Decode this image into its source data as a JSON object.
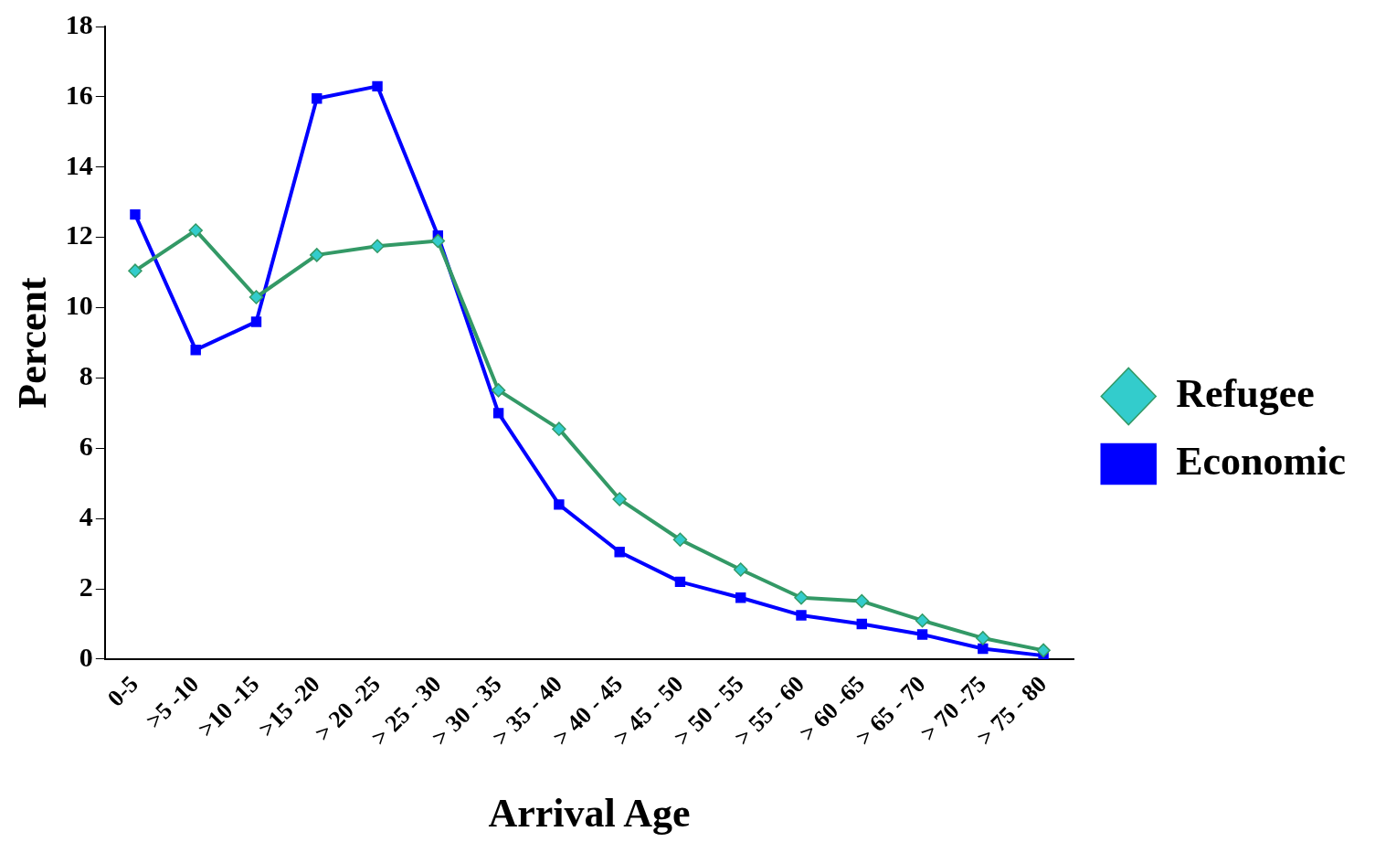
{
  "chart_data": {
    "type": "line",
    "xlabel": "Arrival Age",
    "ylabel": "Percent",
    "categories": [
      "0-5",
      ">5 -10",
      ">10 -15",
      ">15 -20",
      "> 20 -25",
      "> 25 - 30",
      "> 30 - 35",
      "> 35 - 40",
      "> 40 - 45",
      "> 45 - 50",
      "> 50 - 55",
      "> 55 - 60",
      "> 60 -65",
      "> 65 - 70",
      "> 70 -75",
      "> 75 - 80"
    ],
    "series": [
      {
        "name": "Refugee",
        "color": "#339966",
        "marker": "diamond",
        "values": [
          11.05,
          12.2,
          10.3,
          11.5,
          11.75,
          11.9,
          7.65,
          6.55,
          4.55,
          3.4,
          2.55,
          1.75,
          1.65,
          1.1,
          0.6,
          0.25
        ]
      },
      {
        "name": "Economic",
        "color": "#0000ff",
        "marker": "square",
        "values": [
          12.65,
          8.8,
          9.6,
          15.95,
          16.3,
          12.05,
          7.0,
          4.4,
          3.05,
          2.2,
          1.75,
          1.25,
          1.0,
          0.7,
          0.3,
          0.1
        ]
      }
    ],
    "ylim": [
      0,
      18
    ],
    "yticks": [
      0,
      2,
      4,
      6,
      8,
      10,
      12,
      14,
      16,
      18
    ],
    "grid": false,
    "legend": "right"
  }
}
